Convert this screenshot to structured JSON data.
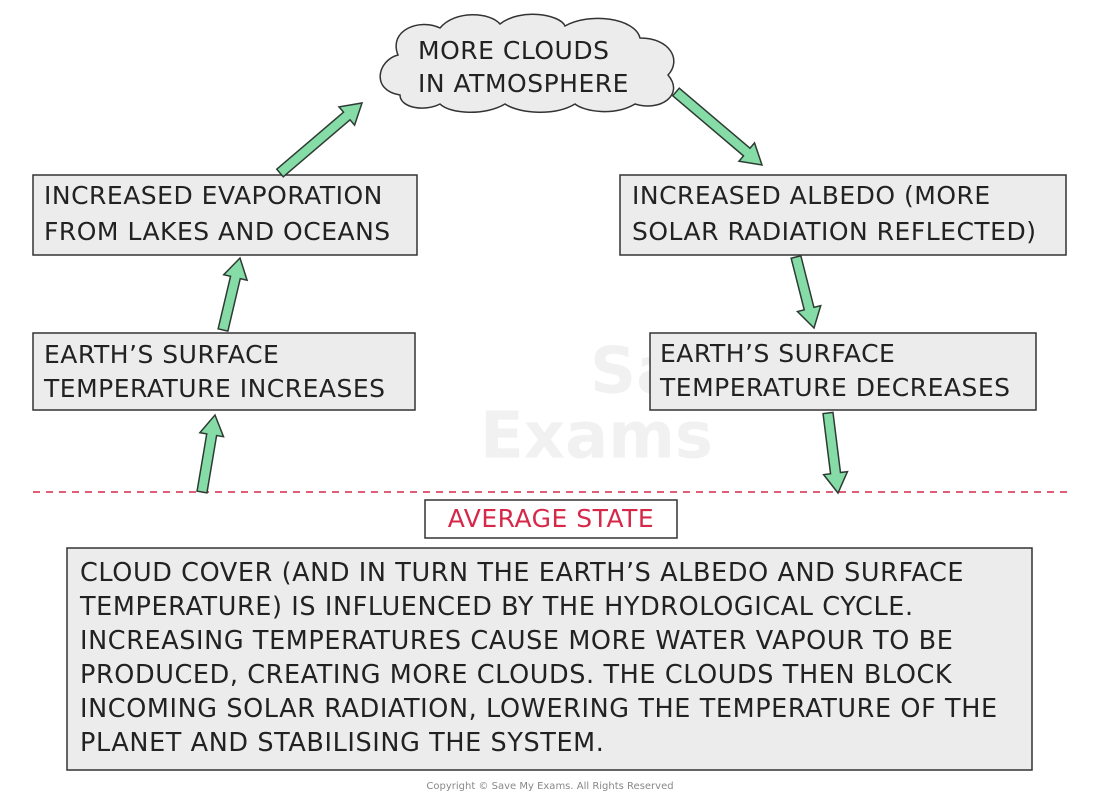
{
  "nodes": [
    {
      "id": "clouds",
      "lines": [
        "MORE CLOUDS",
        "IN ATMOSPHERE"
      ]
    },
    {
      "id": "evaporation",
      "lines": [
        "INCREASED EVAPORATION",
        "FROM LAKES AND OCEANS"
      ]
    },
    {
      "id": "albedo",
      "lines": [
        "INCREASED ALBEDO (MORE",
        "SOLAR RADIATION REFLECTED)"
      ]
    },
    {
      "id": "temp-up",
      "lines": [
        "EARTH’S SURFACE",
        "TEMPERATURE INCREASES"
      ]
    },
    {
      "id": "temp-down",
      "lines": [
        "EARTH’S SURFACE",
        "TEMPERATURE DECREASES"
      ]
    }
  ],
  "average_state": "AVERAGE STATE",
  "explanation": {
    "lines": [
      "CLOUD COVER (AND IN TURN THE EARTH’S ALBEDO AND SURFACE",
      "TEMPERATURE) IS INFLUENCED BY THE HYDROLOGICAL CYCLE.",
      "INCREASING TEMPERATURES CAUSE MORE WATER VAPOUR TO BE",
      "PRODUCED, CREATING MORE CLOUDS. THE CLOUDS THEN BLOCK",
      "INCOMING SOLAR RADIATION, LOWERING THE TEMPERATURE OF THE",
      "PLANET AND STABILISING THE SYSTEM."
    ]
  },
  "watermark": [
    "Save My",
    "Exams"
  ],
  "copyright": "Copyright © Save My Exams. All Rights Reserved"
}
